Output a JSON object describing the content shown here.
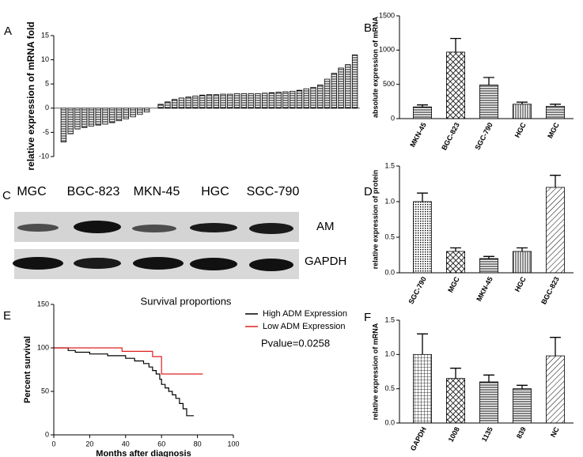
{
  "chart_data": [
    {
      "type": "bar",
      "panel_label": "A",
      "ylabel": "relative expression of mRNA fold",
      "color": "#000000",
      "values": [
        -7,
        -5.3,
        -4.3,
        -4,
        -3.7,
        -3.5,
        -3.3,
        -3,
        -2.6,
        -2.2,
        -1.8,
        -1.3,
        -0.8,
        0,
        0.8,
        1.3,
        1.8,
        2.1,
        2.3,
        2.5,
        2.7,
        2.8,
        2.8,
        2.9,
        2.9,
        3,
        3,
        3,
        3,
        3.1,
        3.2,
        3.3,
        3.4,
        3.5,
        3.7,
        4,
        4.3,
        4.8,
        6,
        7.2,
        8.3,
        9,
        11
      ],
      "ylim": [
        -10,
        15
      ],
      "yticks": [
        -10,
        -5,
        0,
        5,
        10,
        15
      ]
    },
    {
      "type": "bar",
      "panel_label": "B",
      "ylabel": "absolute expression of mRNA",
      "color": "#000000",
      "categories": [
        "MKN-45",
        "BGC-823",
        "SGC-790",
        "HGC",
        "MGC"
      ],
      "values": [
        170,
        970,
        490,
        210,
        180
      ],
      "errors": [
        30,
        200,
        110,
        30,
        30
      ],
      "ylim": [
        0,
        1500
      ],
      "yticks": [
        0,
        500,
        1000,
        1500
      ]
    },
    {
      "type": "bar",
      "panel_label": "D",
      "ylabel": "relative expression of protein",
      "color": "#000000",
      "categories": [
        "SGC-790",
        "MGC",
        "MKN-45",
        "HGC",
        "BGC-823"
      ],
      "values": [
        1.0,
        0.3,
        0.2,
        0.3,
        1.2
      ],
      "errors": [
        0.12,
        0.05,
        0.03,
        0.05,
        0.17
      ],
      "ylim": [
        0,
        1.5
      ],
      "yticks": [
        {
          "value": 0,
          "label": "0.0"
        },
        0.5,
        {
          "value": 1,
          "label": "1.0"
        },
        1.5
      ]
    },
    {
      "type": "line",
      "panel_label": "E",
      "title": "Survival proportions",
      "xlabel": "Months after diagnosis",
      "ylabel": "Percent survival",
      "annotation": "Pvalue=0.0258",
      "series": [
        {
          "name": "High ADM Expression",
          "color": "#000000",
          "x": [
            0,
            8,
            8,
            12,
            12,
            20,
            20,
            30,
            30,
            40,
            40,
            45,
            45,
            50,
            50,
            53,
            53,
            55,
            55,
            57,
            57,
            59,
            59,
            60,
            60,
            62,
            62,
            64,
            64,
            66,
            66,
            68,
            68,
            70,
            70,
            72,
            72,
            74,
            74,
            78
          ],
          "values": [
            100,
            100,
            97,
            97,
            95,
            95,
            93,
            93,
            91,
            91,
            88,
            88,
            85,
            85,
            82,
            82,
            78,
            78,
            74,
            74,
            70,
            70,
            64,
            64,
            58,
            58,
            54,
            54,
            50,
            50,
            46,
            46,
            42,
            42,
            36,
            36,
            30,
            30,
            22,
            22
          ]
        },
        {
          "name": "Low ADM Expression",
          "color": "#e02020",
          "x": [
            0,
            38,
            38,
            55,
            55,
            60,
            60,
            83
          ],
          "values": [
            100,
            100,
            96,
            96,
            90,
            90,
            70,
            70
          ]
        }
      ],
      "xlim": [
        0,
        100
      ],
      "xticks": [
        0,
        20,
        40,
        60,
        80,
        100
      ],
      "ylim": [
        0,
        150
      ],
      "yticks": [
        0,
        50,
        100,
        150
      ]
    },
    {
      "type": "bar",
      "panel_label": "F",
      "ylabel": "relative expression of mRNA",
      "color": "#000000",
      "categories": [
        "GAPDH",
        "1008",
        "1135",
        "839",
        "NC"
      ],
      "values": [
        1.0,
        0.65,
        0.6,
        0.5,
        0.98
      ],
      "errors": [
        0.3,
        0.15,
        0.1,
        0.05,
        0.27
      ],
      "ylim": [
        0,
        1.5
      ],
      "yticks": [
        {
          "value": 0,
          "label": "0.0"
        },
        0.5,
        {
          "value": 1,
          "label": "1.0"
        },
        1.5
      ]
    }
  ],
  "blot": {
    "panel_label": "C",
    "lanes": [
      "MGC",
      "BGC-823",
      "MKN-45",
      "HGC",
      "SGC-790"
    ],
    "rows": [
      "AM",
      "GAPDH"
    ]
  }
}
